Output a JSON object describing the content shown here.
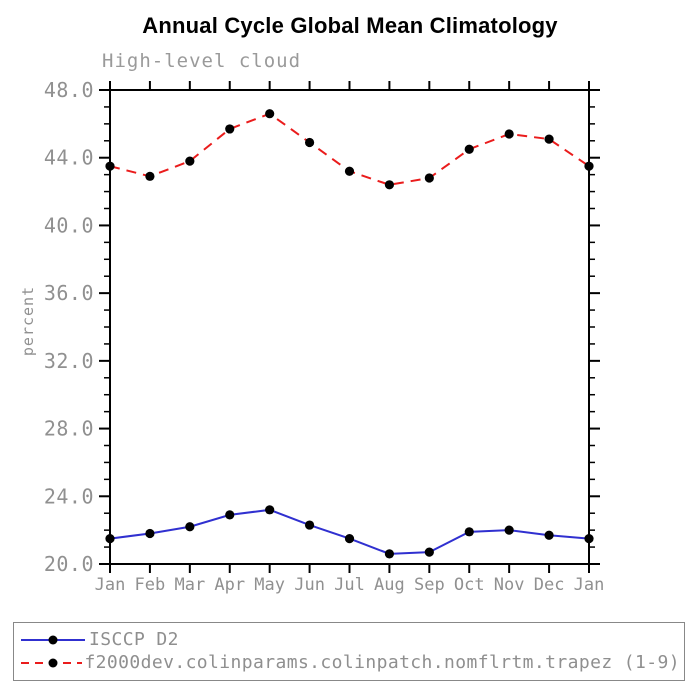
{
  "title": "Annual Cycle Global Mean Climatology",
  "subtitle": "High-level cloud",
  "legend": {
    "entries": [
      {
        "label": "ISCCP D2",
        "color": "#3030d0",
        "style": "solid"
      },
      {
        "label": "f2000dev.colinparams.colinpatch.nomflrtm.trapez (1-9)",
        "color": "#ea1c1c",
        "style": "dashed"
      }
    ]
  },
  "chart_data": {
    "type": "line",
    "title": "Annual Cycle Global Mean Climatology",
    "subtitle": "High-level cloud",
    "ylabel": "percent",
    "xlabel": "",
    "x_categories": [
      "Jan",
      "Feb",
      "Mar",
      "Apr",
      "May",
      "Jun",
      "Jul",
      "Aug",
      "Sep",
      "Oct",
      "Nov",
      "Dec",
      "Jan"
    ],
    "series": [
      {
        "name": "ISCCP D2",
        "color": "#3030d0",
        "dash": false,
        "marker": "filled-circle",
        "marker_color": "#000000",
        "values": [
          21.5,
          21.8,
          22.2,
          22.9,
          23.2,
          22.3,
          21.5,
          20.6,
          20.7,
          21.9,
          22.0,
          21.7,
          21.5
        ]
      },
      {
        "name": "f2000dev.colinparams.colinpatch.nomflrtm.trapez (1-9)",
        "color": "#ea1c1c",
        "dash": true,
        "marker": "filled-circle",
        "marker_color": "#000000",
        "values": [
          43.5,
          42.9,
          43.8,
          45.7,
          46.6,
          44.9,
          43.2,
          42.4,
          42.8,
          44.5,
          45.4,
          45.1,
          43.5
        ]
      }
    ],
    "ylim": [
      20.0,
      48.0
    ],
    "y_major_step": 4,
    "y_minor_step": 1,
    "y_tick_labels": [
      "20.0",
      "24.0",
      "28.0",
      "32.0",
      "36.0",
      "40.0",
      "44.0",
      "48.0"
    ],
    "grid": false,
    "axes_frame": "box-with-outward-ticks",
    "legend_position": "bottom-left-box"
  },
  "colors": {
    "axis": "#000000",
    "tick_text": "#909090",
    "title_text": "#000000",
    "subtitle_text": "#9a9a9a",
    "legend_text": "#8f8f8f",
    "legend_border": "#888888"
  }
}
